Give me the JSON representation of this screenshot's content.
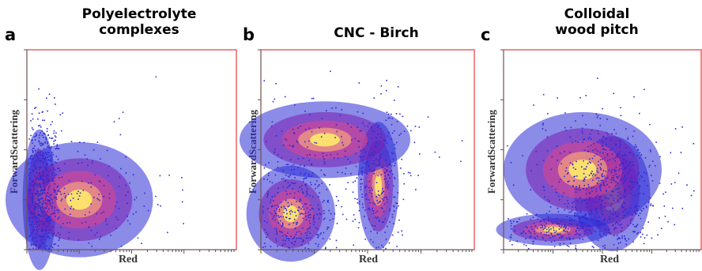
{
  "chart_data": [
    {
      "type": "scatter",
      "letter": "a",
      "title": "Polyelectrolyte\ncomplexes",
      "xlabel": "Red",
      "ylabel": "ForwardScattering",
      "grid": false,
      "frame_color": "#e8383d",
      "point_color": "#2b2bd6",
      "density_colors": [
        "#2b2bd6",
        "#7a1fb0",
        "#d9468f",
        "#f6a27a",
        "#fff06a"
      ],
      "clusters": [
        {
          "x_center": 0.06,
          "y_center": 0.25,
          "x_spread": 0.05,
          "y_spread": 0.22,
          "weight": 0.78
        },
        {
          "x_center": 0.25,
          "y_center": 0.25,
          "x_spread": 0.22,
          "y_spread": 0.18,
          "weight": 0.22
        }
      ]
    },
    {
      "type": "scatter",
      "letter": "b",
      "title": "CNC - Birch",
      "xlabel": "Red",
      "ylabel": "ForwardScattering",
      "grid": false,
      "frame_color": "#e8383d",
      "point_color": "#2b2bd6",
      "density_colors": [
        "#2b2bd6",
        "#7a1fb0",
        "#d9468f",
        "#f6a27a",
        "#fff06a"
      ],
      "clusters": [
        {
          "x_center": 0.14,
          "y_center": 0.18,
          "x_spread": 0.13,
          "y_spread": 0.15,
          "weight": 0.52
        },
        {
          "x_center": 0.55,
          "y_center": 0.32,
          "x_spread": 0.06,
          "y_spread": 0.2,
          "weight": 0.3
        },
        {
          "x_center": 0.3,
          "y_center": 0.55,
          "x_spread": 0.25,
          "y_spread": 0.12,
          "weight": 0.18
        }
      ]
    },
    {
      "type": "scatter",
      "letter": "c",
      "title": "Colloidal\nwood pitch",
      "xlabel": "Red",
      "ylabel": "ForwardScattering",
      "grid": false,
      "frame_color": "#e8383d",
      "point_color": "#2b2bd6",
      "density_colors": [
        "#2b2bd6",
        "#7a1fb0",
        "#d9468f",
        "#f6a27a",
        "#fff06a"
      ],
      "clusters": [
        {
          "x_center": 0.55,
          "y_center": 0.28,
          "x_spread": 0.12,
          "y_spread": 0.18,
          "weight": 0.55
        },
        {
          "x_center": 0.25,
          "y_center": 0.1,
          "x_spread": 0.18,
          "y_spread": 0.05,
          "weight": 0.25
        },
        {
          "x_center": 0.4,
          "y_center": 0.4,
          "x_spread": 0.25,
          "y_spread": 0.18,
          "weight": 0.2
        }
      ]
    }
  ]
}
